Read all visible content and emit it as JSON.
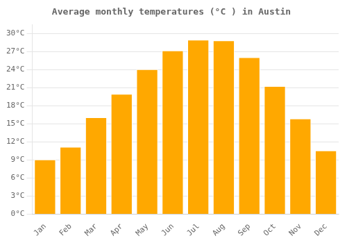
{
  "chart_data": {
    "type": "bar",
    "title": "Average monthly temperatures (°C ) in Austin",
    "categories": [
      "Jan",
      "Feb",
      "Mar",
      "Apr",
      "May",
      "Jun",
      "Jul",
      "Aug",
      "Sep",
      "Oct",
      "Nov",
      "Dec"
    ],
    "values": [
      9.1,
      11.2,
      16.1,
      20.0,
      24.1,
      27.2,
      29.0,
      28.9,
      26.1,
      21.3,
      15.9,
      10.6
    ],
    "color": "#FFA800",
    "ylim": [
      0,
      31.5
    ],
    "yticks": [
      {
        "value": 0,
        "label": "0°C"
      },
      {
        "value": 3,
        "label": "3°C"
      },
      {
        "value": 6,
        "label": "6°C"
      },
      {
        "value": 9,
        "label": "9°C"
      },
      {
        "value": 12,
        "label": "12°C"
      },
      {
        "value": 15,
        "label": "15°C"
      },
      {
        "value": 18,
        "label": "18°C"
      },
      {
        "value": 21,
        "label": "21°C"
      },
      {
        "value": 24,
        "label": "24°C"
      },
      {
        "value": 27,
        "label": "27°C"
      },
      {
        "value": 30,
        "label": "30°C"
      }
    ],
    "grid": true
  }
}
